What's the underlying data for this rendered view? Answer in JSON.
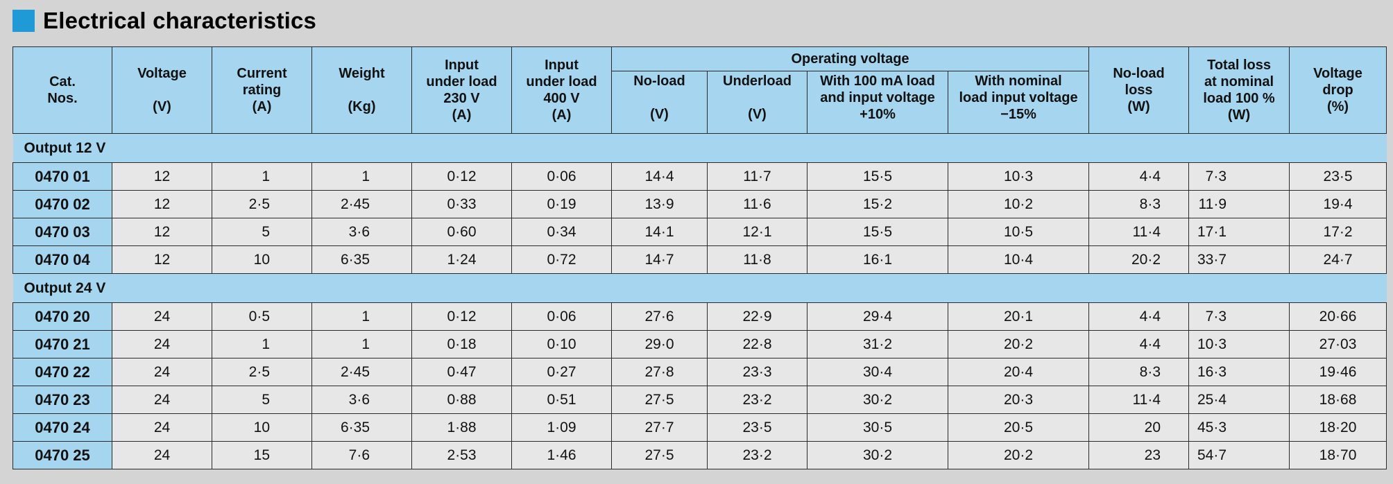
{
  "title": "Electrical characteristics",
  "header": {
    "cat": [
      "Cat.",
      "Nos."
    ],
    "voltage": [
      "Voltage",
      "",
      "(V)"
    ],
    "current": [
      "Current",
      "rating",
      "(A)"
    ],
    "weight": [
      "Weight",
      "",
      "(Kg)"
    ],
    "input230": [
      "Input",
      "under load",
      "230 V",
      "(A)"
    ],
    "input400": [
      "Input",
      "under load",
      "400 V",
      "(A)"
    ],
    "operating": "Operating voltage",
    "noload_v": [
      "No-load",
      "",
      "(V)"
    ],
    "underload": [
      "Underload",
      "",
      "(V)"
    ],
    "with100": [
      "With 100 mA load",
      "and input voltage",
      "+10%"
    ],
    "withnominal": [
      "With nominal",
      "load input voltage",
      "−15%"
    ],
    "noload_loss": [
      "No-load",
      "loss",
      "(W)"
    ],
    "total_loss": [
      "Total loss",
      "at nominal",
      "load 100 %",
      "(W)"
    ],
    "drop": [
      "Voltage",
      "drop",
      "(%)"
    ]
  },
  "sections": [
    {
      "label": "Output 12 V",
      "rows": [
        [
          "0470 01",
          "12",
          "1",
          "1",
          "0·12",
          "0·06",
          "14·4",
          "11·7",
          "15·5",
          "10·3",
          "4·4",
          "7·3",
          "23·5"
        ],
        [
          "0470 02",
          "12",
          "2·5",
          "2·45",
          "0·33",
          "0·19",
          "13·9",
          "11·6",
          "15·2",
          "10·2",
          "8·3",
          "11·9",
          "19·4"
        ],
        [
          "0470 03",
          "12",
          "5",
          "3·6",
          "0·60",
          "0·34",
          "14·1",
          "12·1",
          "15·5",
          "10·5",
          "11·4",
          "17·1",
          "17·2"
        ],
        [
          "0470 04",
          "12",
          "10",
          "6·35",
          "1·24",
          "0·72",
          "14·7",
          "11·8",
          "16·1",
          "10·4",
          "20·2",
          "33·7",
          "24·7"
        ]
      ]
    },
    {
      "label": "Output  24 V",
      "rows": [
        [
          "0470 20",
          "24",
          "0·5",
          "1",
          "0·12",
          "0·06",
          "27·6",
          "22·9",
          "29·4",
          "20·1",
          "4·4",
          "7·3",
          "20·66"
        ],
        [
          "0470 21",
          "24",
          "1",
          "1",
          "0·18",
          "0·10",
          "29·0",
          "22·8",
          "31·2",
          "20·2",
          "4·4",
          "10·3",
          "27·03"
        ],
        [
          "0470 22",
          "24",
          "2·5",
          "2·45",
          "0·47",
          "0·27",
          "27·8",
          "23·3",
          "30·4",
          "20·4",
          "8·3",
          "16·3",
          "19·46"
        ],
        [
          "0470 23",
          "24",
          "5",
          "3·6",
          "0·88",
          "0·51",
          "27·5",
          "23·2",
          "30·2",
          "20·3",
          "11·4",
          "25·4",
          "18·68"
        ],
        [
          "0470 24",
          "24",
          "10",
          "6·35",
          "1·88",
          "1·09",
          "27·7",
          "23·5",
          "30·5",
          "20·5",
          "20",
          "45·3",
          "18·20"
        ],
        [
          "0470 25",
          "24",
          "15",
          "7·6",
          "2·53",
          "1·46",
          "27·5",
          "23·2",
          "30·2",
          "20·2",
          "23",
          "54·7",
          "18·70"
        ]
      ]
    }
  ],
  "colors": {
    "accent": "#1f9ad6",
    "header_bg": "#a6d6ef",
    "cell_bg": "#e7e7e7",
    "page_bg": "#d4d4d4"
  }
}
